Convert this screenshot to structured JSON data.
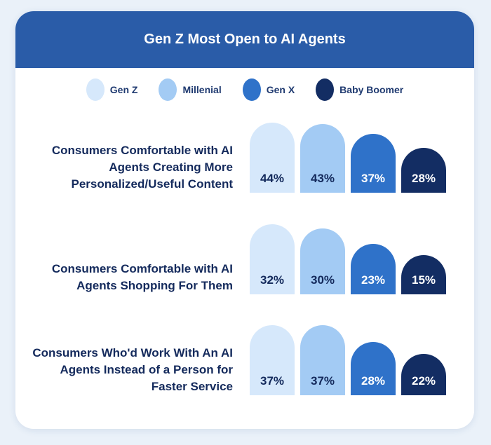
{
  "chart_data": {
    "type": "bar",
    "title": "Gen Z Most Open to AI Agents",
    "categories": [
      "Consumers Comfortable with AI Agents Creating More Personalized/Useful Content",
      "Consumers  Comfortable with AI Agents Shopping For Them",
      "Consumers Who'd Work With An AI Agents Instead of a Person for Faster Service"
    ],
    "series": [
      {
        "name": "Gen Z",
        "color": "#d6e8fb",
        "text_color": "#142a5c",
        "values": [
          44,
          32,
          37
        ]
      },
      {
        "name": "Millenial",
        "color": "#a3cbf4",
        "text_color": "#142a5c",
        "values": [
          43,
          30,
          37
        ]
      },
      {
        "name": "Gen X",
        "color": "#2f72c9",
        "text_color": "#ffffff",
        "values": [
          37,
          23,
          28
        ]
      },
      {
        "name": "Baby Boomer",
        "color": "#132d63",
        "text_color": "#ffffff",
        "values": [
          28,
          15,
          22
        ]
      }
    ],
    "unit": "%",
    "legend": "top",
    "grid": false
  }
}
